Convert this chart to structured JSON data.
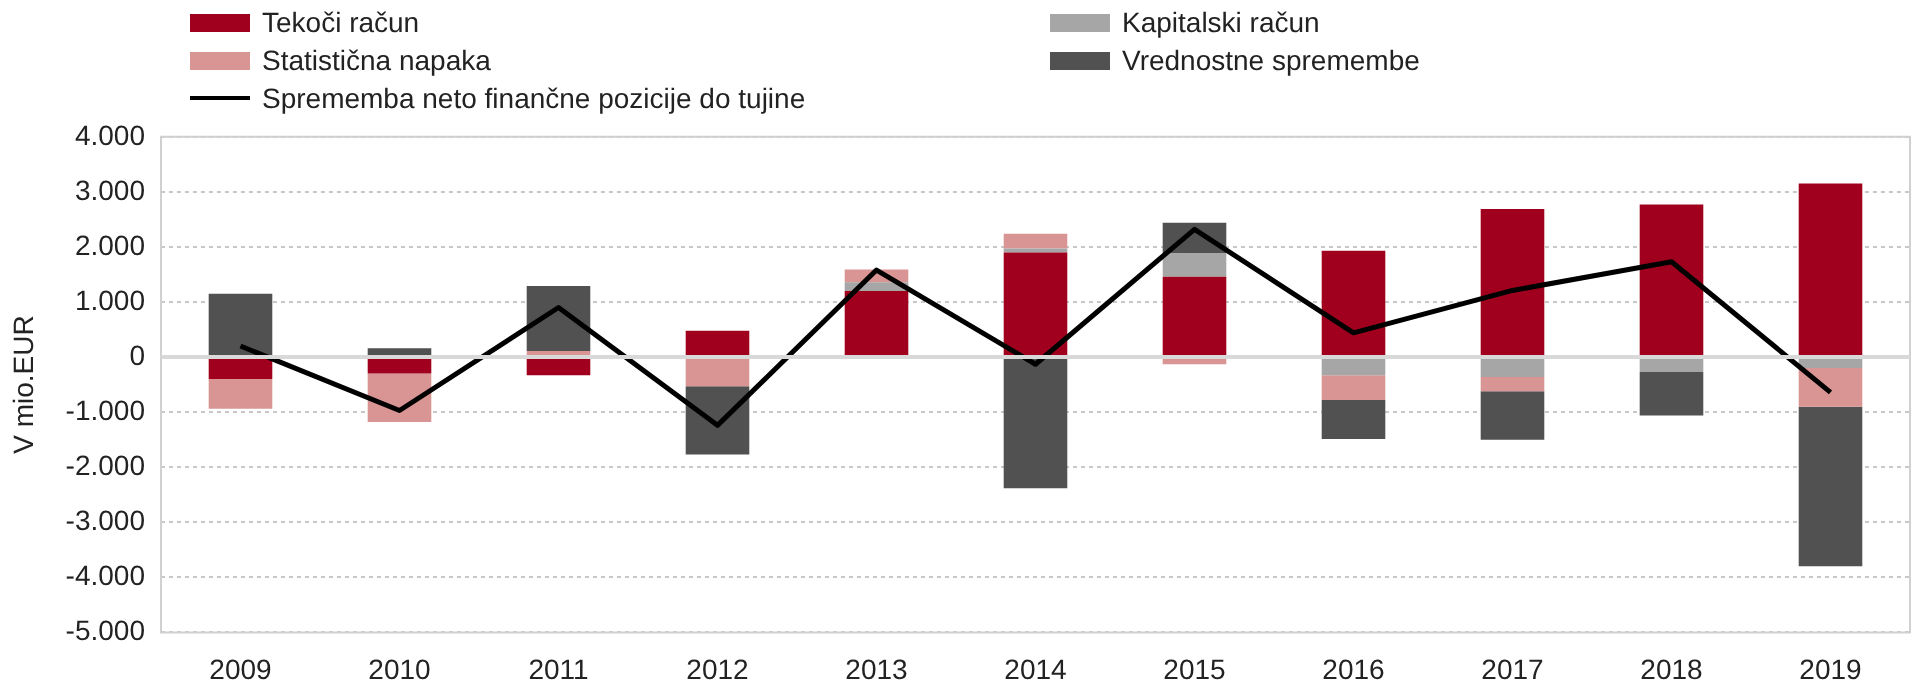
{
  "chart_data": {
    "type": "bar",
    "stacked": true,
    "ylabel": "V mio.EUR",
    "categories": [
      "2009",
      "2010",
      "2011",
      "2012",
      "2013",
      "2014",
      "2015",
      "2016",
      "2017",
      "2018",
      "2019"
    ],
    "series": [
      {
        "name": "Tekoči račun",
        "color": "#a0001e",
        "values": [
          -400,
          -300,
          -330,
          480,
          1200,
          1900,
          1460,
          1930,
          2690,
          2770,
          3150
        ]
      },
      {
        "name": "Kapitalski račun",
        "color": "#a6a6a6",
        "values": [
          null,
          null,
          null,
          null,
          160,
          70,
          430,
          -330,
          -360,
          -270,
          -200
        ]
      },
      {
        "name": "Statistična napaka",
        "color": "#d99594",
        "values": [
          -540,
          -880,
          110,
          -530,
          230,
          270,
          -130,
          -450,
          -260,
          null,
          -700
        ]
      },
      {
        "name": "Vrednostne spremembe",
        "color": "#515151",
        "values": [
          1150,
          160,
          1180,
          -1240,
          null,
          -2380,
          550,
          -710,
          -880,
          -790,
          -2900
        ]
      },
      {
        "name": "Sprememba neto finančne pozicije do tujine",
        "type": "line",
        "color": "#000000",
        "values": [
          200,
          -970,
          900,
          -1240,
          1580,
          -130,
          2320,
          440,
          1210,
          1730,
          -640
        ]
      }
    ],
    "ylim": [
      -5000,
      4000
    ],
    "yticks": [
      {
        "value": -5000,
        "label": "-5.000"
      },
      {
        "value": -4000,
        "label": "-4.000"
      },
      {
        "value": -3000,
        "label": "-3.000"
      },
      {
        "value": -2000,
        "label": "-2.000"
      },
      {
        "value": -1000,
        "label": "-1.000"
      },
      {
        "value": 0,
        "label": "0"
      },
      {
        "value": 1000,
        "label": "1.000"
      },
      {
        "value": 2000,
        "label": "2.000"
      },
      {
        "value": 3000,
        "label": "3.000"
      },
      {
        "value": 4000,
        "label": "4.000"
      }
    ],
    "grid": "y",
    "legend": "top",
    "marker": "none"
  }
}
